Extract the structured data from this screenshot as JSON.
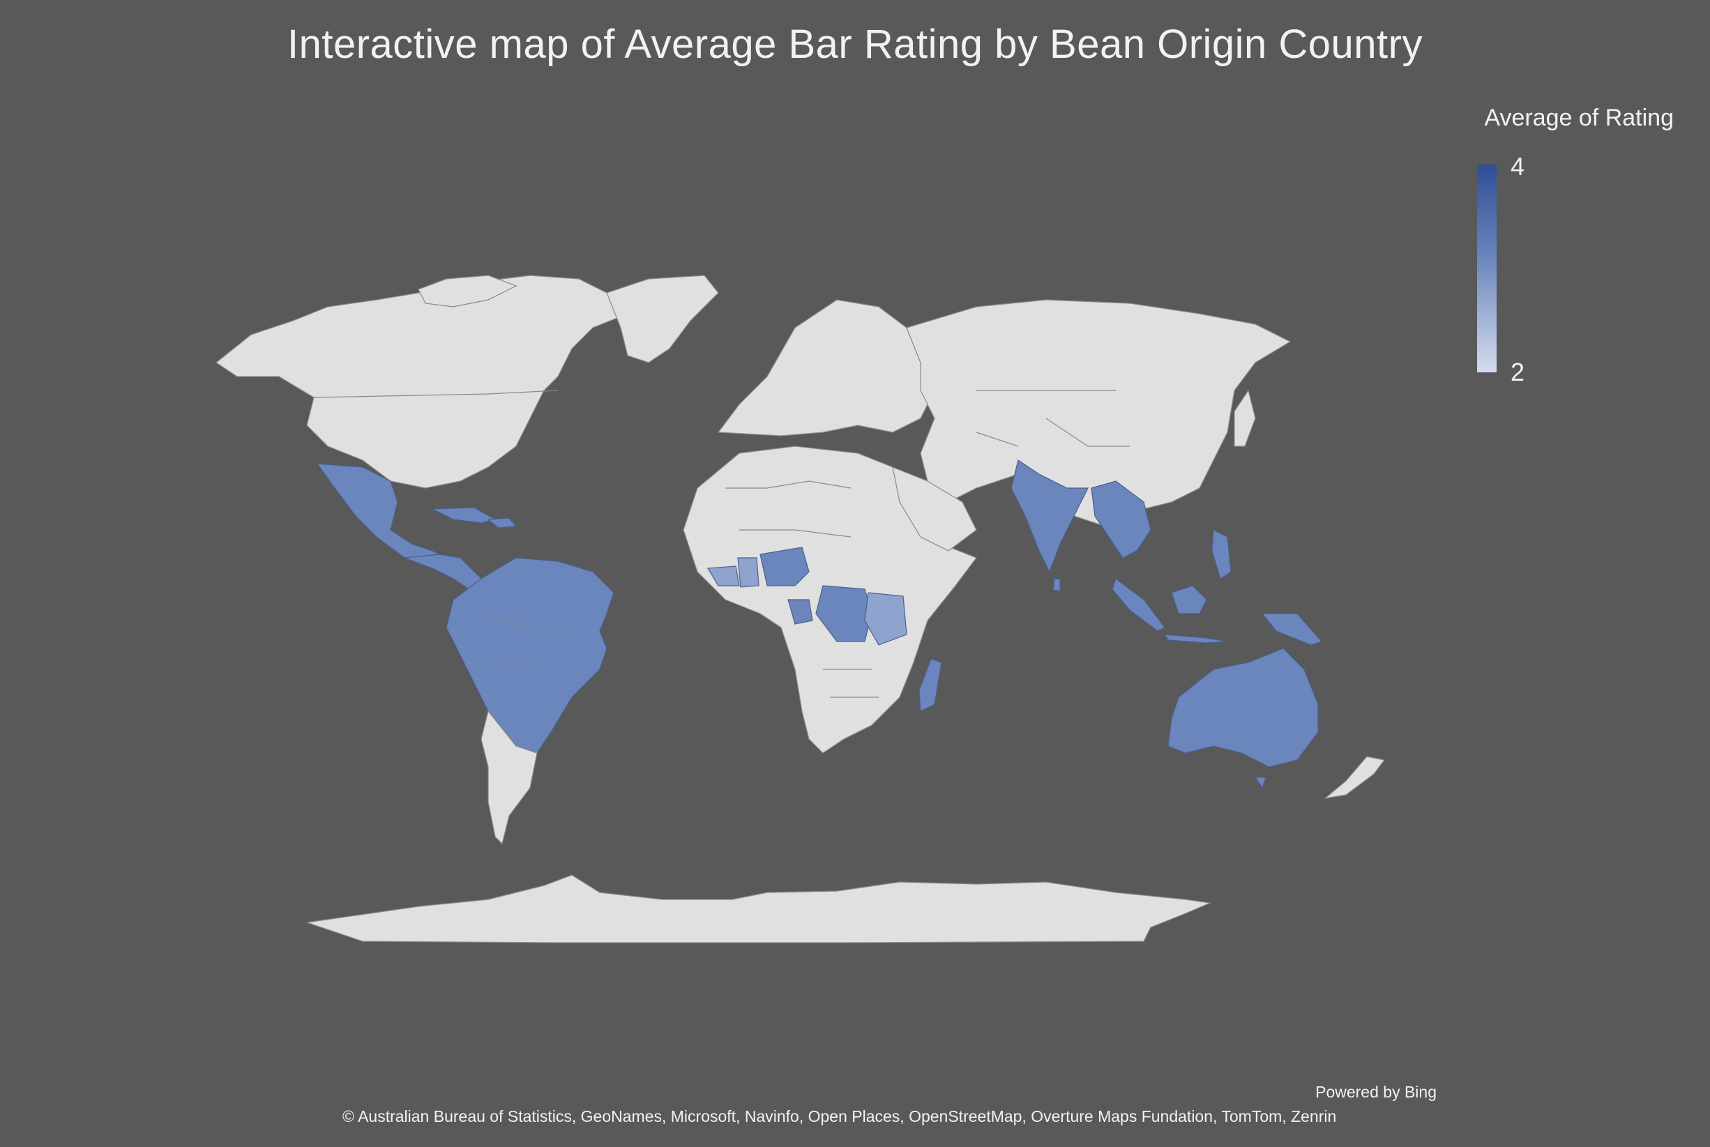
{
  "title": "Interactive map of Average Bar Rating by Bean Origin Country",
  "legend": {
    "title": "Average of Rating",
    "max_label": "4",
    "min_label": "2",
    "max_color": "#2f4e96",
    "min_color": "#d4dcee"
  },
  "colors": {
    "background": "#595959",
    "unrated_land": "#e0e0e0",
    "rated_country": "#6b86bd",
    "rated_country_light": "#8fa3cf"
  },
  "attribution": {
    "powered_by": "Powered by Bing",
    "copyright": "© Australian Bureau of Statistics, GeoNames, Microsoft, Navinfo, Open Places, OpenStreetMap, Overture Maps Fundation, TomTom, Zenrin"
  }
}
